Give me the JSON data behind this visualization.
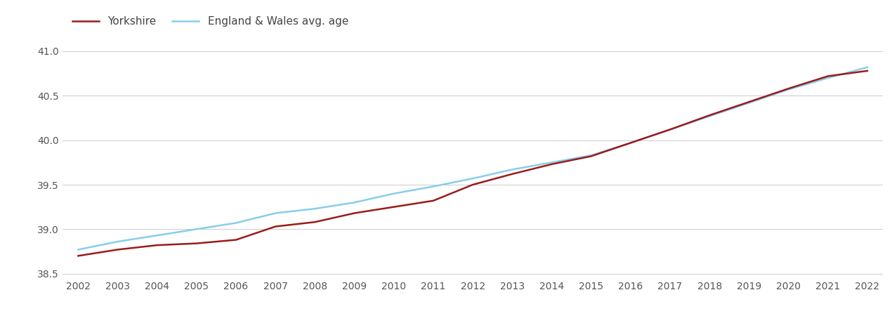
{
  "years": [
    2002,
    2003,
    2004,
    2005,
    2006,
    2007,
    2008,
    2009,
    2010,
    2011,
    2012,
    2013,
    2014,
    2015,
    2016,
    2017,
    2018,
    2019,
    2020,
    2021,
    2022
  ],
  "yorkshire": [
    38.7,
    38.77,
    38.82,
    38.84,
    38.88,
    39.03,
    39.08,
    39.18,
    39.25,
    39.32,
    39.5,
    39.62,
    39.73,
    39.82,
    39.97,
    40.12,
    40.28,
    40.43,
    40.58,
    40.72,
    40.78
  ],
  "england_wales": [
    38.77,
    38.86,
    38.93,
    39.0,
    39.07,
    39.18,
    39.23,
    39.3,
    39.4,
    39.48,
    39.57,
    39.67,
    39.75,
    39.83,
    39.97,
    40.12,
    40.27,
    40.42,
    40.57,
    40.7,
    40.82
  ],
  "yorkshire_color": "#9b1b1b",
  "england_wales_color": "#87ceeb",
  "yorkshire_label": "Yorkshire",
  "england_wales_label": "England & Wales avg. age",
  "ylim": [
    38.45,
    41.15
  ],
  "yticks": [
    38.5,
    39.0,
    39.5,
    40.0,
    40.5,
    41.0
  ],
  "grid_color": "#cccccc",
  "line_width": 1.8,
  "background_color": "#ffffff",
  "legend_fontsize": 11,
  "tick_fontsize": 10
}
